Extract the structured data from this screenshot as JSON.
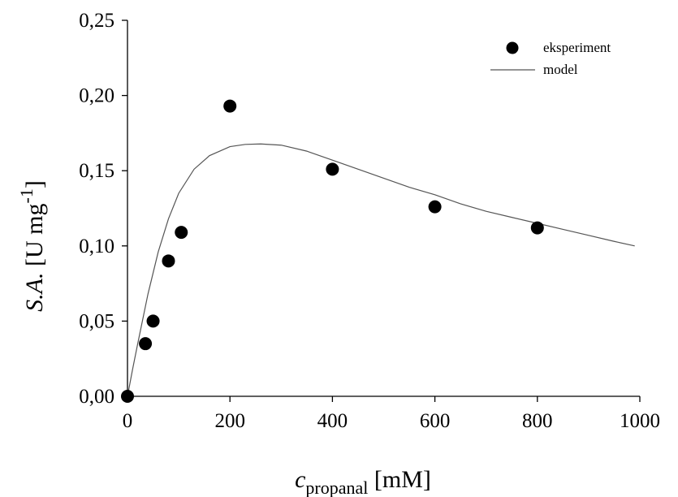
{
  "chart_data": {
    "type": "scatter",
    "xlim": [
      0,
      1000
    ],
    "ylim": [
      0,
      0.25
    ],
    "x_ticks": [
      "0",
      "200",
      "400",
      "600",
      "800",
      "1000"
    ],
    "y_ticks": [
      "0,00",
      "0,05",
      "0,10",
      "0,15",
      "0,20",
      "0,25"
    ],
    "x_tick_values": [
      0,
      200,
      400,
      600,
      800,
      1000
    ],
    "y_tick_values": [
      0,
      0.05,
      0.1,
      0.15,
      0.2,
      0.25
    ],
    "xlabel": {
      "main": "c",
      "subscript": "propanal",
      "unit": " [mM]"
    },
    "ylabel": {
      "italic": "S.A.",
      "unit": " [U mg",
      "superscript": "-1",
      "close": "]"
    },
    "grid": false,
    "legend_position": "top-right",
    "series": [
      {
        "name": "eksperiment",
        "kind": "markers",
        "color": "#000000",
        "x": [
          0,
          35,
          50,
          80,
          105,
          200,
          400,
          600,
          800
        ],
        "y": [
          0.0,
          0.035,
          0.05,
          0.09,
          0.109,
          0.193,
          0.151,
          0.126,
          0.112
        ]
      },
      {
        "name": "model",
        "kind": "line",
        "color": "#555555",
        "x": [
          0,
          10,
          20,
          40,
          60,
          80,
          100,
          130,
          160,
          200,
          230,
          260,
          300,
          350,
          400,
          450,
          500,
          550,
          600,
          650,
          700,
          750,
          800,
          850,
          900,
          950,
          990
        ],
        "y": [
          0.0,
          0.018,
          0.035,
          0.068,
          0.096,
          0.118,
          0.135,
          0.151,
          0.16,
          0.166,
          0.1675,
          0.1678,
          0.167,
          0.163,
          0.157,
          0.151,
          0.145,
          0.139,
          0.134,
          0.128,
          0.123,
          0.119,
          0.115,
          0.111,
          0.107,
          0.103,
          0.1
        ]
      }
    ]
  }
}
